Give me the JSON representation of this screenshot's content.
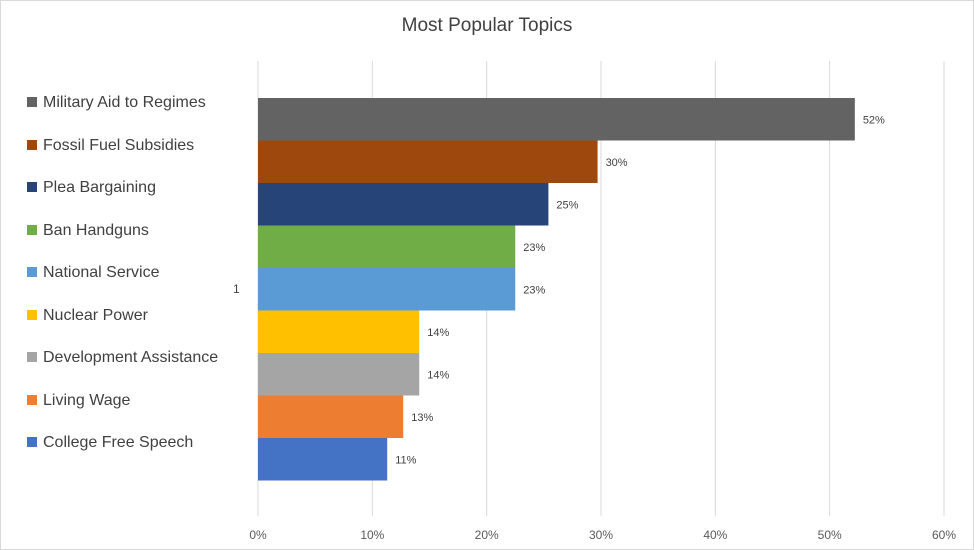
{
  "chart_data": {
    "type": "bar",
    "orientation": "horizontal",
    "title": "Most Popular Topics",
    "categories": [
      "1"
    ],
    "xlim": [
      0,
      60
    ],
    "xticks": [
      "0%",
      "10%",
      "20%",
      "30%",
      "40%",
      "50%",
      "60%"
    ],
    "grid": true,
    "legend_position": "left",
    "series": [
      {
        "name": "Military Aid to Regimes",
        "value": 52.2,
        "label": "52%",
        "color": "#636363"
      },
      {
        "name": "Fossil Fuel Subsidies",
        "value": 29.7,
        "label": "30%",
        "color": "#9e480e"
      },
      {
        "name": "Plea Bargaining",
        "value": 25.4,
        "label": "25%",
        "color": "#264478"
      },
      {
        "name": "Ban Handguns",
        "value": 22.5,
        "label": "23%",
        "color": "#70ad47"
      },
      {
        "name": "National Service",
        "value": 22.5,
        "label": "23%",
        "color": "#5b9bd5"
      },
      {
        "name": "Nuclear Power",
        "value": 14.1,
        "label": "14%",
        "color": "#ffc000"
      },
      {
        "name": "Development Assistance",
        "value": 14.1,
        "label": "14%",
        "color": "#a5a5a5"
      },
      {
        "name": "Living Wage",
        "value": 12.7,
        "label": "13%",
        "color": "#ed7d31"
      },
      {
        "name": "College Free Speech",
        "value": 11.3,
        "label": "11%",
        "color": "#4472c4"
      }
    ]
  }
}
